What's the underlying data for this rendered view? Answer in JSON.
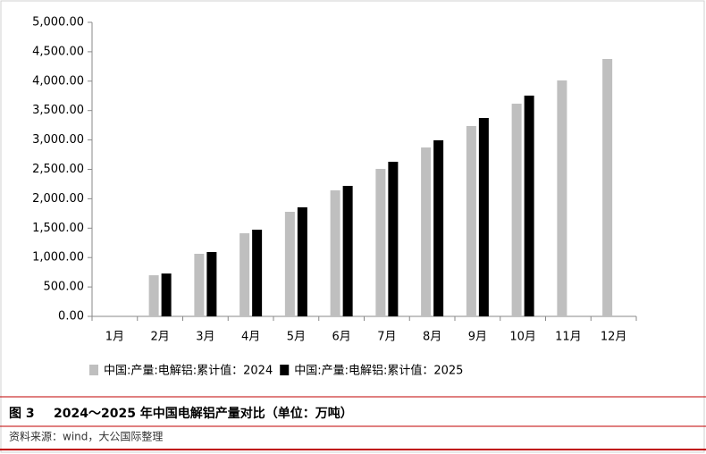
{
  "chart_data": {
    "type": "bar",
    "figure_label": "图 3",
    "title": "2024～2025 年中国电解铝产量对比（单位：万吨）",
    "source": "资料来源：wind，大公国际整理",
    "categories": [
      "1月",
      "2月",
      "3月",
      "4月",
      "5月",
      "6月",
      "7月",
      "8月",
      "9月",
      "10月",
      "11月",
      "12月"
    ],
    "series": [
      {
        "name": "中国:产量:电解铝:累计值：2024",
        "color": "#bfbfbf",
        "values": [
          null,
          700,
          1064,
          1413,
          1778,
          2143,
          2508,
          2872,
          3237,
          3617,
          4012,
          4377
        ]
      },
      {
        "name": "中国:产量:电解铝:累计值：2025",
        "color": "#000000",
        "values": [
          null,
          729,
          1094,
          1474,
          1854,
          2219,
          2629,
          2994,
          3374,
          3754,
          null,
          null
        ]
      }
    ],
    "ylim": [
      0,
      5000
    ],
    "yticks": [
      {
        "value": 0,
        "label": "0.00"
      },
      {
        "value": 500,
        "label": "500.00"
      },
      {
        "value": 1000,
        "label": "1,000.00"
      },
      {
        "value": 1500,
        "label": "1,500.00"
      },
      {
        "value": 2000,
        "label": "2,000.00"
      },
      {
        "value": 2500,
        "label": "2,500.00"
      },
      {
        "value": 3000,
        "label": "3,000.00"
      },
      {
        "value": 3500,
        "label": "3,500.00"
      },
      {
        "value": 4000,
        "label": "4,000.00"
      },
      {
        "value": 4500,
        "label": "4,500.00"
      },
      {
        "value": 5000,
        "label": "5,000.00"
      }
    ],
    "grid": false,
    "legend": "bottom"
  }
}
